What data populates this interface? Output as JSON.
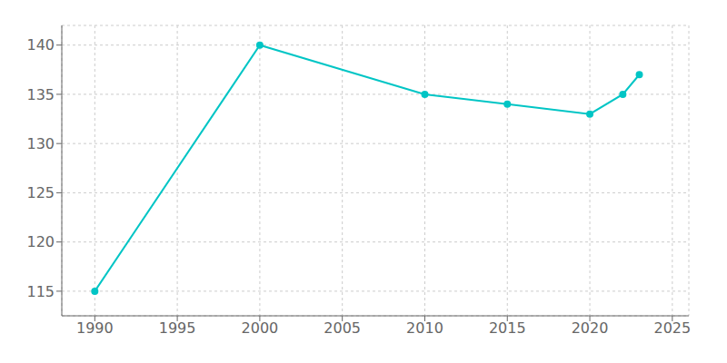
{
  "chart_data": {
    "type": "line",
    "x": [
      1990,
      2000,
      2010,
      2015,
      2020,
      2022,
      2023
    ],
    "values": [
      115,
      140,
      135,
      134,
      133,
      135,
      137
    ],
    "color": "#00C5C5",
    "marker": "circle",
    "xlim": [
      1988,
      2026
    ],
    "ylim": [
      112.5,
      142
    ],
    "xticks": [
      1990,
      1995,
      2000,
      2005,
      2010,
      2015,
      2020,
      2025
    ],
    "yticks": [
      115,
      120,
      125,
      130,
      135,
      140
    ],
    "grid": true
  }
}
